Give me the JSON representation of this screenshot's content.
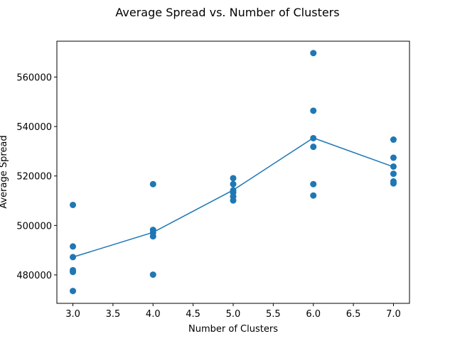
{
  "chart_data": {
    "type": "scatter",
    "title": "Average Spread vs. Number of Clusters",
    "xlabel": "Number of Clusters",
    "ylabel": "Average Spread",
    "xlim": [
      2.8,
      7.2
    ],
    "ylim": [
      468500,
      574500
    ],
    "x_ticks": [
      "3.0",
      "3.5",
      "4.0",
      "4.5",
      "5.0",
      "5.5",
      "6.0",
      "6.5",
      "7.0"
    ],
    "y_ticks": [
      "480000",
      "500000",
      "520000",
      "540000",
      "560000"
    ],
    "grid": false,
    "color": "#1f77b4",
    "series": [
      {
        "type": "scatter",
        "points": [
          {
            "x": 3,
            "y": 508300
          },
          {
            "x": 3,
            "y": 491500
          },
          {
            "x": 3,
            "y": 487200
          },
          {
            "x": 3,
            "y": 481900
          },
          {
            "x": 3,
            "y": 481200
          },
          {
            "x": 3,
            "y": 473500
          },
          {
            "x": 4,
            "y": 516700
          },
          {
            "x": 4,
            "y": 498200
          },
          {
            "x": 4,
            "y": 497000
          },
          {
            "x": 4,
            "y": 495600
          },
          {
            "x": 4,
            "y": 480100
          },
          {
            "x": 5,
            "y": 519100
          },
          {
            "x": 5,
            "y": 516700
          },
          {
            "x": 5,
            "y": 514200
          },
          {
            "x": 5,
            "y": 513300
          },
          {
            "x": 5,
            "y": 511700
          },
          {
            "x": 5,
            "y": 510100
          },
          {
            "x": 6,
            "y": 569700
          },
          {
            "x": 6,
            "y": 546400
          },
          {
            "x": 6,
            "y": 535300
          },
          {
            "x": 6,
            "y": 531800
          },
          {
            "x": 6,
            "y": 516700
          },
          {
            "x": 6,
            "y": 512100
          },
          {
            "x": 7,
            "y": 534700
          },
          {
            "x": 7,
            "y": 527400
          },
          {
            "x": 7,
            "y": 523800
          },
          {
            "x": 7,
            "y": 520900
          },
          {
            "x": 7,
            "y": 517800
          },
          {
            "x": 7,
            "y": 517000
          }
        ]
      },
      {
        "type": "line",
        "x": [
          3,
          4,
          5,
          6,
          7
        ],
        "y": [
          487200,
          497200,
          514300,
          535400,
          523700
        ]
      }
    ]
  }
}
